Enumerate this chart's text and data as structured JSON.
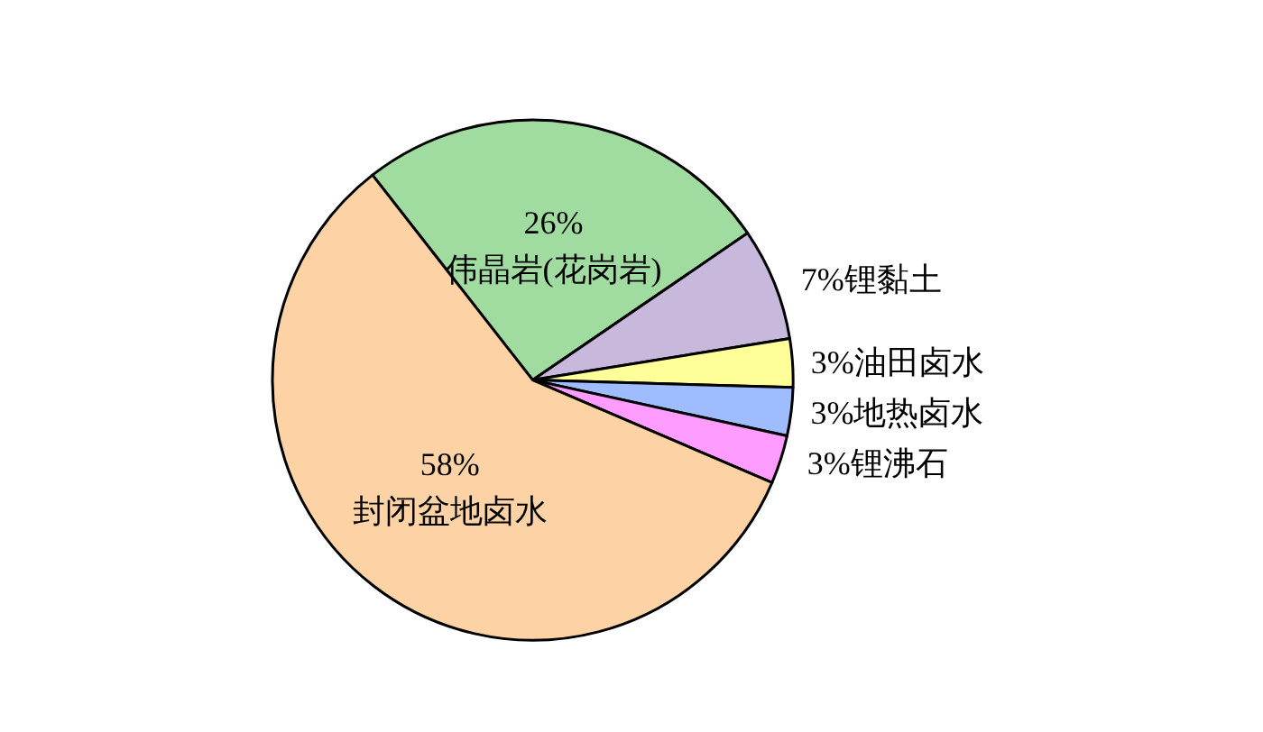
{
  "chart_data": {
    "type": "pie",
    "categories": [
      "伟晶岩(花岗岩)",
      "锂黏土",
      "油田卤水",
      "地热卤水",
      "锂沸石",
      "封闭盆地卤水"
    ],
    "values": [
      26,
      7,
      3,
      3,
      3,
      58
    ],
    "colors": [
      "#a0dca0",
      "#c8b9dc",
      "#ffff99",
      "#9fbcff",
      "#ff9cff",
      "#fdd3a6"
    ],
    "value_labels": [
      "26%",
      "7%",
      "3%",
      "3%",
      "3%",
      "58%"
    ],
    "legend": false
  }
}
